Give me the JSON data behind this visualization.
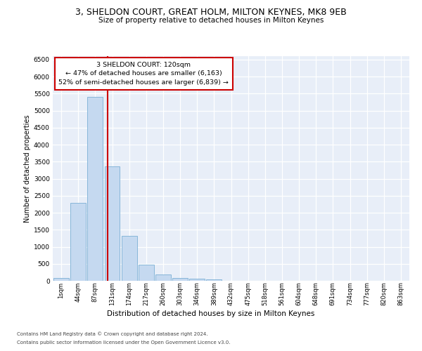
{
  "title1": "3, SHELDON COURT, GREAT HOLM, MILTON KEYNES, MK8 9EB",
  "title2": "Size of property relative to detached houses in Milton Keynes",
  "xlabel": "Distribution of detached houses by size in Milton Keynes",
  "ylabel": "Number of detached properties",
  "annotation_line1": "3 SHELDON COURT: 120sqm",
  "annotation_line2": "← 47% of detached houses are smaller (6,163)",
  "annotation_line3": "52% of semi-detached houses are larger (6,839) →",
  "footer_line1": "Contains HM Land Registry data © Crown copyright and database right 2024.",
  "footer_line2": "Contains public sector information licensed under the Open Government Licence v3.0.",
  "bar_color": "#c5d9f0",
  "bar_edge_color": "#7aafd4",
  "vline_color": "#cc0000",
  "categories": [
    "1sqm",
    "44sqm",
    "87sqm",
    "131sqm",
    "174sqm",
    "217sqm",
    "260sqm",
    "303sqm",
    "346sqm",
    "389sqm",
    "432sqm",
    "475sqm",
    "518sqm",
    "561sqm",
    "604sqm",
    "648sqm",
    "691sqm",
    "734sqm",
    "777sqm",
    "820sqm",
    "863sqm"
  ],
  "values": [
    75,
    2280,
    5400,
    3370,
    1310,
    470,
    185,
    90,
    55,
    50,
    5,
    5,
    0,
    0,
    0,
    0,
    0,
    0,
    0,
    0,
    0
  ],
  "ylim": [
    0,
    6600
  ],
  "yticks": [
    0,
    500,
    1000,
    1500,
    2000,
    2500,
    3000,
    3500,
    4000,
    4500,
    5000,
    5500,
    6000,
    6500
  ],
  "background_color": "#e8eef8",
  "grid_color": "white",
  "vline_position": 2.75,
  "figsize": [
    6.0,
    5.0
  ],
  "dpi": 100
}
